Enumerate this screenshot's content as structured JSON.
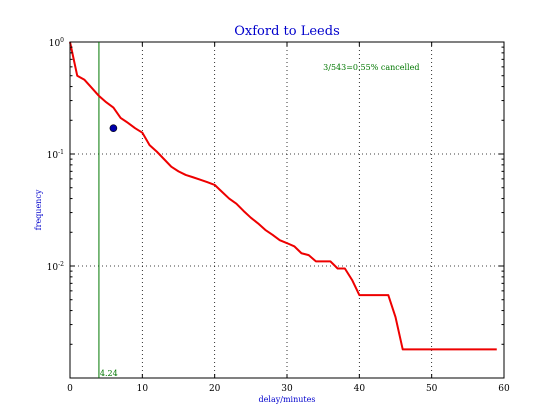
{
  "chart_data": {
    "type": "line",
    "title": "Oxford to Leeds",
    "xlabel": "delay/minutes",
    "ylabel": "frequency",
    "xlim": [
      0,
      60
    ],
    "ylim": [
      0.001,
      1
    ],
    "yscale": "log",
    "grid": true,
    "x_ticks": [
      0,
      10,
      20,
      30,
      40,
      50,
      60
    ],
    "y_ticks": [
      {
        "value": 1,
        "base": "10",
        "exp": "0"
      },
      {
        "value": 0.1,
        "base": "10",
        "exp": "-1"
      },
      {
        "value": 0.01,
        "base": "10",
        "exp": "-2"
      }
    ],
    "colors": {
      "title": "#0000cc",
      "axis_label": "#0000cc",
      "curve": "#ee0000",
      "vline": "#007700",
      "annotation": "#007700",
      "marker": "#0000aa"
    },
    "series": [
      {
        "x": [
          0,
          1,
          2,
          3,
          4,
          5,
          6,
          7,
          8,
          9,
          10,
          11,
          12,
          13,
          14,
          15,
          16,
          17,
          18,
          19,
          20,
          21,
          22,
          23,
          24,
          25,
          26,
          27,
          28,
          29,
          30,
          31,
          32,
          33,
          34,
          35,
          36,
          37,
          38,
          39,
          40,
          41,
          42,
          43,
          44,
          45,
          46,
          47,
          48,
          49,
          50,
          51,
          52,
          53,
          54,
          55,
          56,
          57,
          58,
          59
        ],
        "y": [
          1.0,
          0.5,
          0.46,
          0.39,
          0.33,
          0.29,
          0.26,
          0.21,
          0.19,
          0.17,
          0.155,
          0.12,
          0.105,
          0.09,
          0.077,
          0.07,
          0.065,
          0.062,
          0.059,
          0.056,
          0.053,
          0.046,
          0.04,
          0.036,
          0.031,
          0.027,
          0.024,
          0.021,
          0.019,
          0.017,
          0.016,
          0.015,
          0.013,
          0.0125,
          0.011,
          0.011,
          0.011,
          0.0095,
          0.0095,
          0.0075,
          0.0055,
          0.0055,
          0.0055,
          0.0055,
          0.0055,
          0.0035,
          0.0018,
          0.0018,
          0.0018,
          0.0018,
          0.0018,
          0.0018,
          0.0018,
          0.0018,
          0.0018,
          0.0018,
          0.0018,
          0.0018,
          0.0018,
          0.0018
        ]
      }
    ],
    "marker_point": {
      "x": 6,
      "y": 0.17
    },
    "vline": {
      "x": 4,
      "label": "4.24"
    },
    "annotation": {
      "x": 35,
      "y": 0.6,
      "text": "3/543=0.55% cancelled"
    }
  }
}
